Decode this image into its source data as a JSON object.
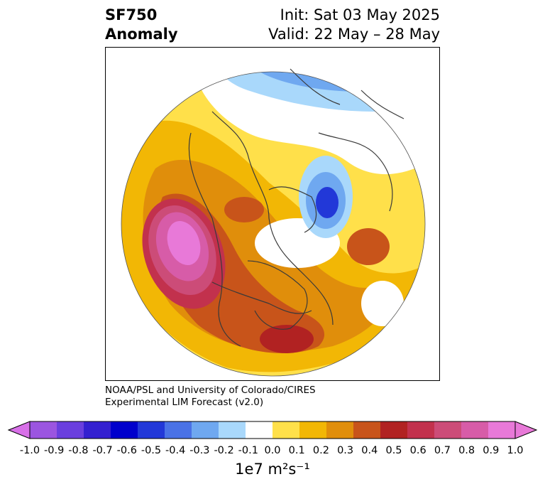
{
  "title": {
    "variable": "SF750",
    "subtitle": "Anomaly",
    "init": "Init: Sat 03 May 2025",
    "valid": "Valid: 22 May – 28 May"
  },
  "credit": {
    "line1": "NOAA/PSL and University of Colorado/CIRES",
    "line2": "Experimental LIM Forecast (v2.0)"
  },
  "colorbar": {
    "ticks": [
      "-1.0",
      "-0.9",
      "-0.8",
      "-0.7",
      "-0.6",
      "-0.5",
      "-0.4",
      "-0.3",
      "-0.2",
      "-0.1",
      "0.0",
      "0.1",
      "0.2",
      "0.3",
      "0.4",
      "0.5",
      "0.6",
      "0.7",
      "0.8",
      "0.9",
      "1.0"
    ],
    "colors": [
      "#9b55e0",
      "#6a3fde",
      "#3420d0",
      "#0000cc",
      "#2238d8",
      "#4a72e6",
      "#6fa8f0",
      "#a9d8fb",
      "#ffffff",
      "#ffe04a",
      "#f2b705",
      "#e08e0b",
      "#c8541a",
      "#b12222",
      "#c2314d",
      "#cc4c78",
      "#d75ca8",
      "#e879d8"
    ],
    "min_color": "#d870e8",
    "max_color": "#e879d8",
    "unit": "1e7 m²s⁻¹"
  },
  "map": {
    "projection": "north polar stereographic",
    "region": "Northern Hemisphere",
    "features": [
      "coastlines",
      "country borders",
      "US state borders"
    ]
  }
}
